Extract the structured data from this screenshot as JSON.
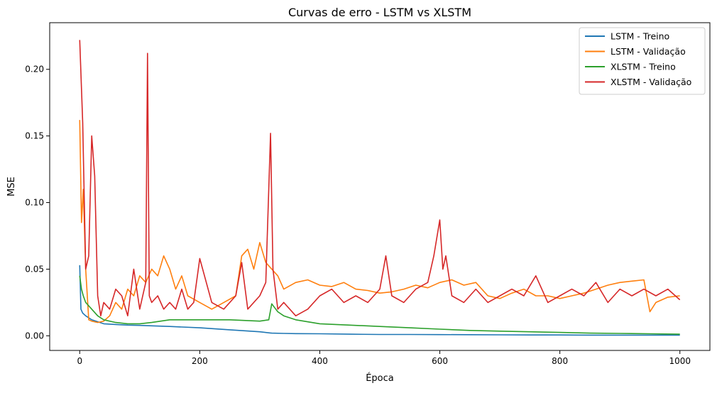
{
  "chart_data": {
    "type": "line",
    "title": "Curvas de erro - LSTM vs XLSTM",
    "xlabel": "Época",
    "ylabel": "MSE",
    "xlim": [
      -50,
      1050
    ],
    "ylim": [
      -0.011,
      0.235
    ],
    "x_ticks": [
      0,
      200,
      400,
      600,
      800,
      1000
    ],
    "x_tick_labels": [
      "0",
      "200",
      "400",
      "600",
      "800",
      "1000"
    ],
    "y_ticks": [
      0.0,
      0.05,
      0.1,
      0.15,
      0.2
    ],
    "y_tick_labels": [
      "0.00",
      "0.05",
      "0.10",
      "0.15",
      "0.20"
    ],
    "grid": false,
    "legend_position": "top-right",
    "series": [
      {
        "name": "LSTM - Treino",
        "color": "#1f77b4",
        "x": [
          0,
          2,
          5,
          10,
          20,
          40,
          60,
          80,
          100,
          120,
          150,
          200,
          250,
          300,
          320,
          340,
          360,
          400,
          450,
          500,
          550,
          600,
          650,
          700,
          750,
          800,
          850,
          900,
          950,
          1000
        ],
        "y": [
          0.053,
          0.02,
          0.017,
          0.015,
          0.012,
          0.009,
          0.0085,
          0.008,
          0.0078,
          0.0075,
          0.007,
          0.006,
          0.0045,
          0.003,
          0.002,
          0.0018,
          0.0016,
          0.0015,
          0.0012,
          0.001,
          0.001,
          0.0009,
          0.0008,
          0.0007,
          0.0006,
          0.0006,
          0.0005,
          0.0005,
          0.0005,
          0.0005
        ]
      },
      {
        "name": "LSTM - Validação",
        "color": "#ff7f0e",
        "x": [
          0,
          3,
          6,
          10,
          15,
          20,
          30,
          40,
          50,
          60,
          70,
          80,
          90,
          100,
          110,
          120,
          130,
          140,
          150,
          160,
          170,
          180,
          200,
          220,
          240,
          260,
          270,
          280,
          290,
          300,
          310,
          320,
          330,
          340,
          360,
          380,
          400,
          420,
          440,
          460,
          480,
          500,
          520,
          540,
          560,
          580,
          600,
          620,
          640,
          660,
          680,
          700,
          720,
          740,
          760,
          780,
          800,
          820,
          840,
          860,
          880,
          900,
          920,
          940,
          950,
          960,
          980,
          1000
        ],
        "y": [
          0.162,
          0.085,
          0.11,
          0.05,
          0.012,
          0.011,
          0.01,
          0.011,
          0.015,
          0.025,
          0.02,
          0.035,
          0.03,
          0.045,
          0.04,
          0.05,
          0.045,
          0.06,
          0.05,
          0.035,
          0.045,
          0.03,
          0.025,
          0.02,
          0.025,
          0.03,
          0.06,
          0.065,
          0.05,
          0.07,
          0.055,
          0.05,
          0.045,
          0.035,
          0.04,
          0.042,
          0.038,
          0.037,
          0.04,
          0.035,
          0.034,
          0.032,
          0.033,
          0.035,
          0.038,
          0.036,
          0.04,
          0.042,
          0.038,
          0.04,
          0.03,
          0.028,
          0.032,
          0.035,
          0.03,
          0.03,
          0.028,
          0.03,
          0.032,
          0.035,
          0.038,
          0.04,
          0.041,
          0.042,
          0.018,
          0.025,
          0.029,
          0.03
        ]
      },
      {
        "name": "XLSTM - Treino",
        "color": "#2ca02c",
        "x": [
          0,
          3,
          6,
          10,
          20,
          30,
          40,
          60,
          80,
          100,
          120,
          150,
          200,
          250,
          300,
          315,
          320,
          330,
          340,
          360,
          400,
          450,
          500,
          550,
          600,
          650,
          700,
          750,
          800,
          850,
          900,
          950,
          1000
        ],
        "y": [
          0.045,
          0.035,
          0.03,
          0.025,
          0.02,
          0.015,
          0.012,
          0.01,
          0.009,
          0.009,
          0.01,
          0.012,
          0.012,
          0.012,
          0.011,
          0.012,
          0.024,
          0.018,
          0.015,
          0.012,
          0.009,
          0.008,
          0.007,
          0.006,
          0.005,
          0.004,
          0.0035,
          0.003,
          0.0025,
          0.002,
          0.0018,
          0.0015,
          0.0012
        ]
      },
      {
        "name": "XLSTM - Validação",
        "color": "#d62728",
        "x": [
          0,
          5,
          10,
          15,
          20,
          25,
          30,
          35,
          40,
          50,
          60,
          70,
          80,
          90,
          100,
          110,
          113,
          116,
          120,
          130,
          140,
          150,
          160,
          170,
          180,
          190,
          200,
          220,
          240,
          260,
          270,
          280,
          300,
          310,
          318,
          322,
          330,
          340,
          360,
          380,
          400,
          420,
          440,
          460,
          480,
          500,
          510,
          520,
          540,
          560,
          580,
          590,
          600,
          605,
          610,
          620,
          640,
          660,
          680,
          700,
          720,
          740,
          760,
          780,
          800,
          820,
          840,
          860,
          880,
          900,
          920,
          940,
          960,
          980,
          1000
        ],
        "y": [
          0.222,
          0.16,
          0.05,
          0.06,
          0.15,
          0.12,
          0.03,
          0.015,
          0.025,
          0.02,
          0.035,
          0.03,
          0.015,
          0.05,
          0.02,
          0.04,
          0.212,
          0.03,
          0.025,
          0.03,
          0.02,
          0.025,
          0.02,
          0.035,
          0.02,
          0.025,
          0.058,
          0.025,
          0.02,
          0.03,
          0.055,
          0.02,
          0.03,
          0.04,
          0.152,
          0.05,
          0.02,
          0.025,
          0.015,
          0.02,
          0.03,
          0.035,
          0.025,
          0.03,
          0.025,
          0.035,
          0.06,
          0.03,
          0.025,
          0.035,
          0.04,
          0.06,
          0.087,
          0.05,
          0.06,
          0.03,
          0.025,
          0.035,
          0.025,
          0.03,
          0.035,
          0.03,
          0.045,
          0.025,
          0.03,
          0.035,
          0.03,
          0.04,
          0.025,
          0.035,
          0.03,
          0.035,
          0.03,
          0.035,
          0.027
        ]
      }
    ]
  }
}
